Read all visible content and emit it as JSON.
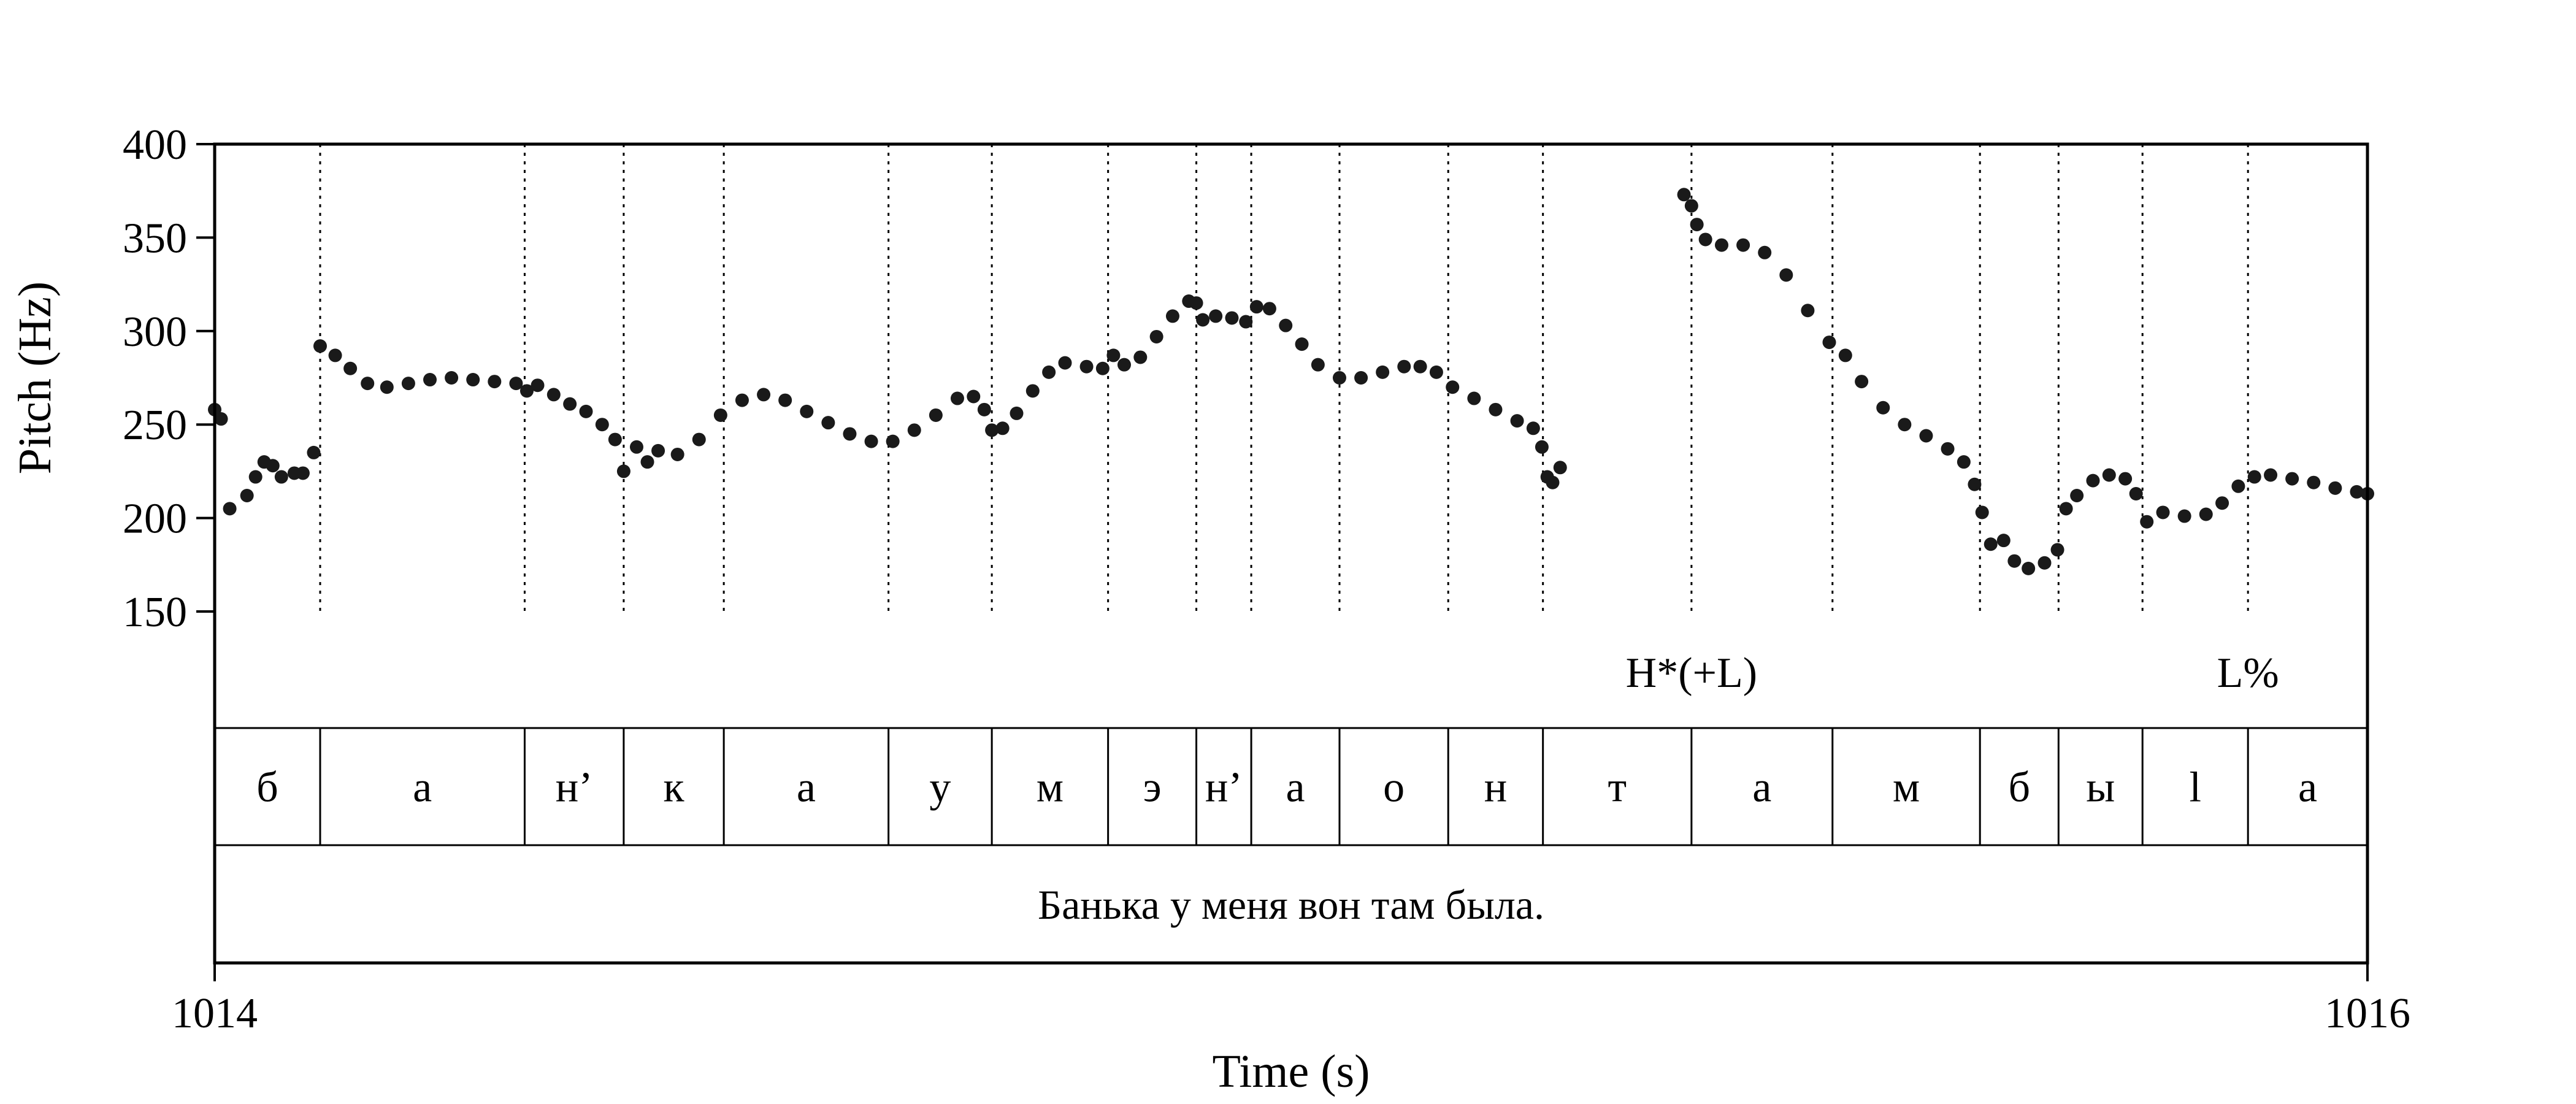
{
  "chart_data": {
    "type": "scatter",
    "ylabel": "Pitch (Hz)",
    "xlabel": "Time (s)",
    "xlim": [
      1014,
      1016
    ],
    "ylim": [
      150,
      400
    ],
    "x_tick_labels": [
      "1014",
      "1016"
    ],
    "y_ticks": [
      150,
      200,
      250,
      300,
      350,
      400
    ],
    "y_tick_labels": [
      "150",
      "200",
      "250",
      "300",
      "350",
      "400"
    ],
    "grid": "dotted vertical lines at segment boundaries",
    "point_color": "#1a1a1a",
    "segments": [
      {
        "label": "б",
        "start": 1014.0,
        "end": 1014.098
      },
      {
        "label": "а",
        "start": 1014.098,
        "end": 1014.288
      },
      {
        "label": "н’",
        "start": 1014.288,
        "end": 1014.38
      },
      {
        "label": "к",
        "start": 1014.38,
        "end": 1014.473
      },
      {
        "label": "а",
        "start": 1014.473,
        "end": 1014.626
      },
      {
        "label": "у",
        "start": 1014.626,
        "end": 1014.722
      },
      {
        "label": "м",
        "start": 1014.722,
        "end": 1014.83
      },
      {
        "label": "э",
        "start": 1014.83,
        "end": 1014.912
      },
      {
        "label": "н’",
        "start": 1014.912,
        "end": 1014.963
      },
      {
        "label": "а",
        "start": 1014.963,
        "end": 1015.045
      },
      {
        "label": "о",
        "start": 1015.045,
        "end": 1015.146
      },
      {
        "label": "н",
        "start": 1015.146,
        "end": 1015.234
      },
      {
        "label": "т",
        "start": 1015.234,
        "end": 1015.372
      },
      {
        "label": "а",
        "start": 1015.372,
        "end": 1015.503
      },
      {
        "label": "м",
        "start": 1015.503,
        "end": 1015.64
      },
      {
        "label": "б",
        "start": 1015.64,
        "end": 1015.713
      },
      {
        "label": "ы",
        "start": 1015.713,
        "end": 1015.791
      },
      {
        "label": "l",
        "start": 1015.791,
        "end": 1015.889
      },
      {
        "label": "а",
        "start": 1015.889,
        "end": 1016.0
      }
    ],
    "tones": [
      {
        "label": "H*(+L)",
        "time": 1015.372
      },
      {
        "label": "L%",
        "time": 1015.889
      }
    ],
    "sentence": "Банька у меня вон там была.",
    "pitch_contour": [
      [
        1014.0,
        258
      ],
      [
        1014.006,
        253
      ],
      [
        1014.014,
        205
      ],
      [
        1014.03,
        212
      ],
      [
        1014.038,
        222
      ],
      [
        1014.046,
        230
      ],
      [
        1014.054,
        228
      ],
      [
        1014.062,
        222
      ],
      [
        1014.074,
        224
      ],
      [
        1014.082,
        224
      ],
      [
        1014.092,
        235
      ],
      [
        1014.098,
        292
      ],
      [
        1014.112,
        287
      ],
      [
        1014.126,
        280
      ],
      [
        1014.142,
        272
      ],
      [
        1014.16,
        270
      ],
      [
        1014.18,
        272
      ],
      [
        1014.2,
        274
      ],
      [
        1014.22,
        275
      ],
      [
        1014.24,
        274
      ],
      [
        1014.26,
        273
      ],
      [
        1014.28,
        272
      ],
      [
        1014.29,
        268
      ],
      [
        1014.3,
        271
      ],
      [
        1014.315,
        266
      ],
      [
        1014.33,
        261
      ],
      [
        1014.345,
        257
      ],
      [
        1014.36,
        250
      ],
      [
        1014.372,
        242
      ],
      [
        1014.38,
        225
      ],
      [
        1014.392,
        238
      ],
      [
        1014.402,
        230
      ],
      [
        1014.412,
        236
      ],
      [
        1014.43,
        234
      ],
      [
        1014.45,
        242
      ],
      [
        1014.47,
        255
      ],
      [
        1014.49,
        263
      ],
      [
        1014.51,
        266
      ],
      [
        1014.53,
        263
      ],
      [
        1014.55,
        257
      ],
      [
        1014.57,
        251
      ],
      [
        1014.59,
        245
      ],
      [
        1014.61,
        241
      ],
      [
        1014.63,
        241
      ],
      [
        1014.65,
        247
      ],
      [
        1014.67,
        255
      ],
      [
        1014.69,
        264
      ],
      [
        1014.705,
        265
      ],
      [
        1014.715,
        258
      ],
      [
        1014.722,
        247
      ],
      [
        1014.732,
        248
      ],
      [
        1014.745,
        256
      ],
      [
        1014.76,
        268
      ],
      [
        1014.775,
        278
      ],
      [
        1014.79,
        283
      ],
      [
        1014.81,
        281
      ],
      [
        1014.825,
        280
      ],
      [
        1014.835,
        287
      ],
      [
        1014.845,
        282
      ],
      [
        1014.86,
        286
      ],
      [
        1014.875,
        297
      ],
      [
        1014.89,
        308
      ],
      [
        1014.905,
        316
      ],
      [
        1014.912,
        315
      ],
      [
        1014.918,
        306
      ],
      [
        1014.93,
        308
      ],
      [
        1014.945,
        307
      ],
      [
        1014.958,
        305
      ],
      [
        1014.968,
        313
      ],
      [
        1014.98,
        312
      ],
      [
        1014.995,
        303
      ],
      [
        1015.01,
        293
      ],
      [
        1015.025,
        282
      ],
      [
        1015.045,
        275
      ],
      [
        1015.065,
        275
      ],
      [
        1015.085,
        278
      ],
      [
        1015.105,
        281
      ],
      [
        1015.12,
        281
      ],
      [
        1015.135,
        278
      ],
      [
        1015.15,
        270
      ],
      [
        1015.17,
        264
      ],
      [
        1015.19,
        258
      ],
      [
        1015.21,
        252
      ],
      [
        1015.225,
        248
      ],
      [
        1015.233,
        238
      ],
      [
        1015.238,
        222
      ],
      [
        1015.243,
        219
      ],
      [
        1015.25,
        227
      ],
      [
        1015.365,
        373
      ],
      [
        1015.372,
        367
      ],
      [
        1015.377,
        357
      ],
      [
        1015.385,
        349
      ],
      [
        1015.4,
        346
      ],
      [
        1015.42,
        346
      ],
      [
        1015.44,
        342
      ],
      [
        1015.46,
        330
      ],
      [
        1015.48,
        311
      ],
      [
        1015.5,
        294
      ],
      [
        1015.515,
        287
      ],
      [
        1015.53,
        273
      ],
      [
        1015.55,
        259
      ],
      [
        1015.57,
        250
      ],
      [
        1015.59,
        244
      ],
      [
        1015.61,
        237
      ],
      [
        1015.625,
        230
      ],
      [
        1015.635,
        218
      ],
      [
        1015.642,
        203
      ],
      [
        1015.65,
        186
      ],
      [
        1015.662,
        188
      ],
      [
        1015.672,
        177
      ],
      [
        1015.685,
        173
      ],
      [
        1015.7,
        176
      ],
      [
        1015.712,
        183
      ],
      [
        1015.72,
        205
      ],
      [
        1015.73,
        212
      ],
      [
        1015.745,
        220
      ],
      [
        1015.76,
        223
      ],
      [
        1015.775,
        221
      ],
      [
        1015.785,
        213
      ],
      [
        1015.795,
        198
      ],
      [
        1015.81,
        203
      ],
      [
        1015.83,
        201
      ],
      [
        1015.85,
        202
      ],
      [
        1015.865,
        208
      ],
      [
        1015.88,
        217
      ],
      [
        1015.895,
        222
      ],
      [
        1015.91,
        223
      ],
      [
        1015.93,
        221
      ],
      [
        1015.95,
        219
      ],
      [
        1015.97,
        216
      ],
      [
        1015.99,
        214
      ],
      [
        1016.0,
        213
      ]
    ]
  }
}
